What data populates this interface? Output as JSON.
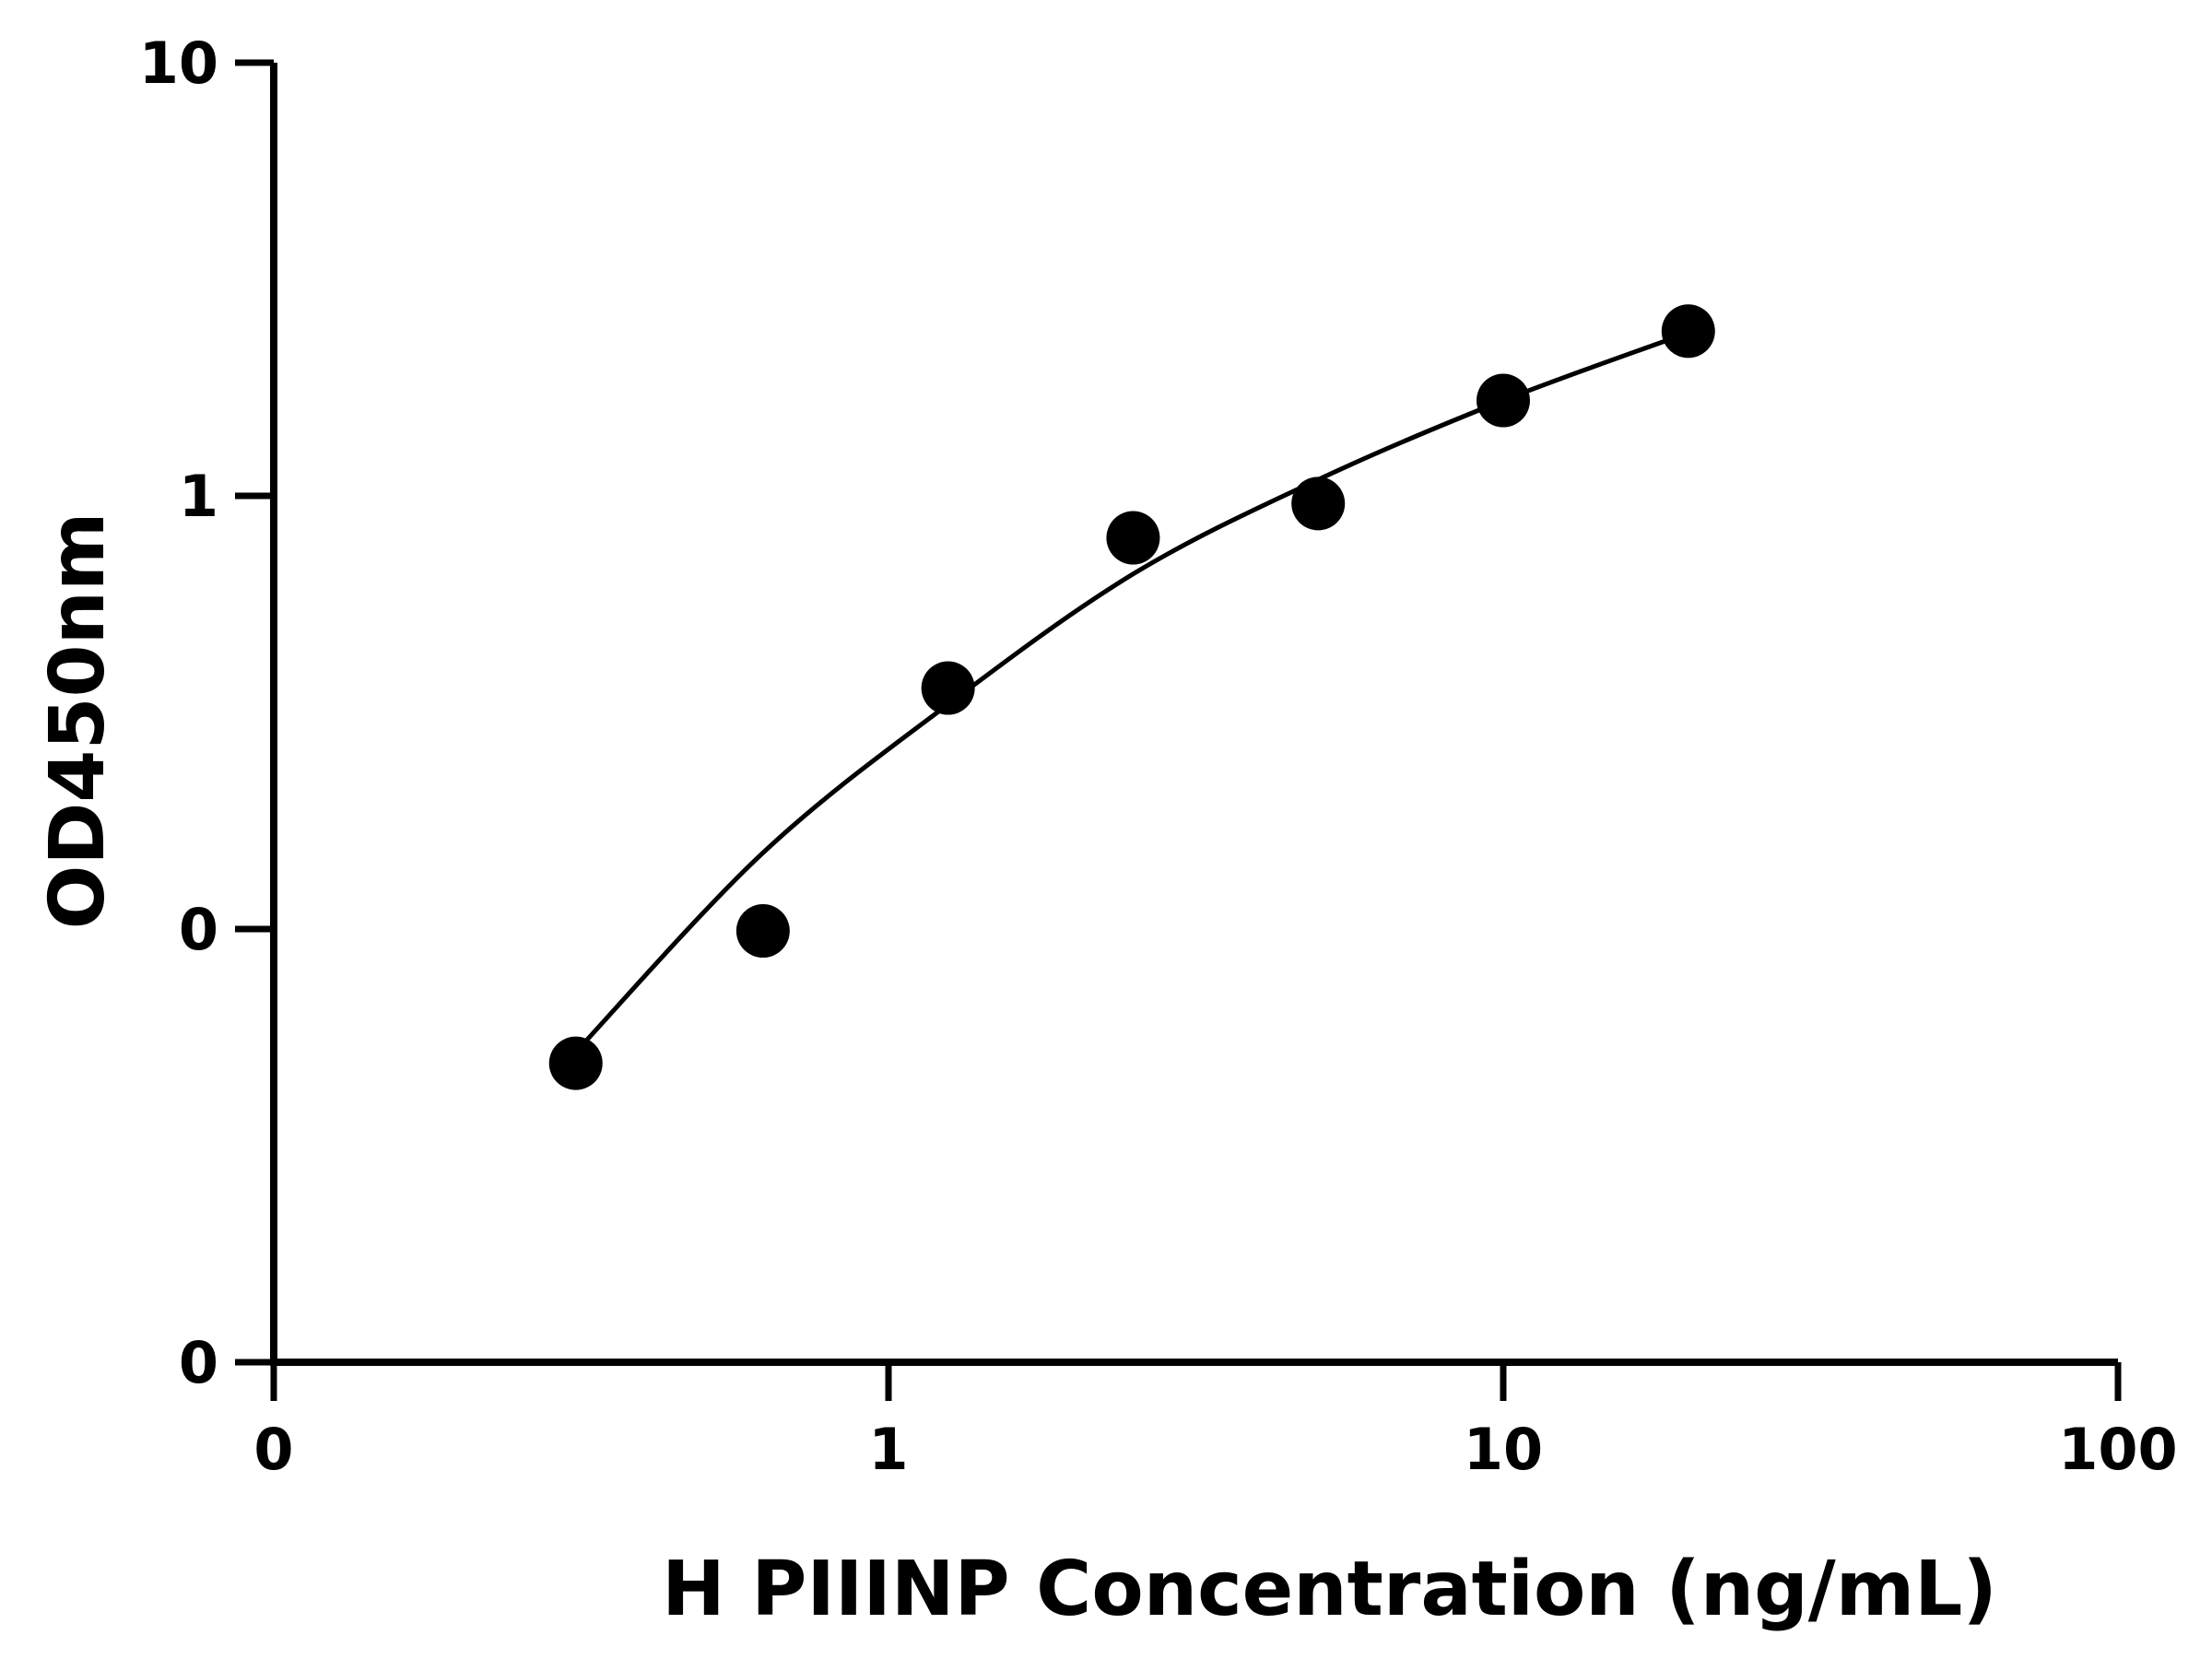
{
  "chart_data": {
    "type": "scatter",
    "xlabel": "H PIIINP Concentration (ng/mL)",
    "ylabel": "OD450nm",
    "x_scale": "log",
    "y_scale": "log",
    "xlim": [
      0.1,
      100
    ],
    "ylim": [
      0.01,
      10
    ],
    "x_ticks": [
      {
        "value": 0.1,
        "label": "0"
      },
      {
        "value": 1,
        "label": "1"
      },
      {
        "value": 10,
        "label": "10"
      },
      {
        "value": 100,
        "label": "100"
      }
    ],
    "y_ticks": [
      {
        "value": 0.01,
        "label": "0"
      },
      {
        "value": 0.1,
        "label": "0"
      },
      {
        "value": 1,
        "label": "1"
      },
      {
        "value": 10,
        "label": "10"
      }
    ],
    "series": [
      {
        "x": [
          0.31,
          0.625,
          1.25,
          2.5,
          5,
          10,
          20
        ],
        "y": [
          0.049,
          0.099,
          0.36,
          0.8,
          0.96,
          1.66,
          2.4
        ]
      }
    ],
    "fit_curve": {
      "x": [
        0.31,
        0.625,
        1.25,
        2.5,
        5,
        10,
        20
      ],
      "y": [
        0.052,
        0.15,
        0.33,
        0.66,
        1.09,
        1.66,
        2.38
      ]
    },
    "grid": false,
    "legend": "none"
  }
}
